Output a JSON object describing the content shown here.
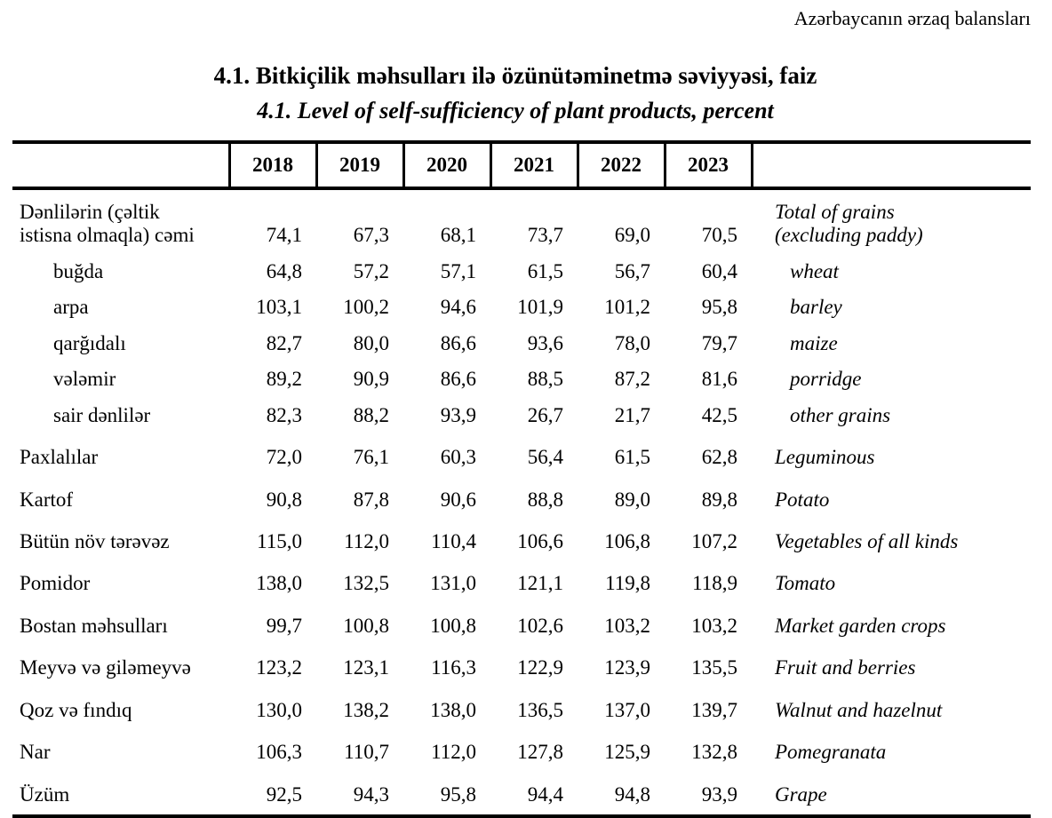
{
  "page": {
    "corner_caption": "Azərbaycanın ərzaq balansları",
    "title_az": "4.1. Bitkiçilik məhsulları ilə özünütəminetmə səviyyəsi, faiz",
    "title_en": "4.1. Level of self-sufficiency of plant products, percent"
  },
  "table": {
    "year_headers": [
      "2018",
      "2019",
      "2020",
      "2021",
      "2022",
      "2023"
    ],
    "rows": [
      {
        "az": "Dənlilərin (çəltik istisna olmaqla) cəmi",
        "az_lines": [
          "Dənlilərin (çəltik",
          "istisna olmaqla) cəmi"
        ],
        "en": "Total of grains (excluding paddy)",
        "en_lines": [
          "Total of grains",
          "(excluding paddy)"
        ],
        "level": "main",
        "values": [
          "74,1",
          "67,3",
          "68,1",
          "73,7",
          "69,0",
          "70,5"
        ]
      },
      {
        "az": "buğda",
        "en": "wheat",
        "level": "sub",
        "values": [
          "64,8",
          "57,2",
          "57,1",
          "61,5",
          "56,7",
          "60,4"
        ]
      },
      {
        "az": "arpa",
        "en": "barley",
        "level": "sub",
        "values": [
          "103,1",
          "100,2",
          "94,6",
          "101,9",
          "101,2",
          "95,8"
        ]
      },
      {
        "az": "qarğıdalı",
        "en": "maize",
        "level": "sub",
        "values": [
          "82,7",
          "80,0",
          "86,6",
          "93,6",
          "78,0",
          "79,7"
        ]
      },
      {
        "az": "vələmir",
        "en": "porridge",
        "level": "sub",
        "values": [
          "89,2",
          "90,9",
          "86,6",
          "88,5",
          "87,2",
          "81,6"
        ]
      },
      {
        "az": "sair dənlilər",
        "en": "other grains",
        "level": "sub",
        "values": [
          "82,3",
          "88,2",
          "93,9",
          "26,7",
          "21,7",
          "42,5"
        ]
      },
      {
        "az": "Paxlalılar",
        "en": "Leguminous",
        "level": "main",
        "values": [
          "72,0",
          "76,1",
          "60,3",
          "56,4",
          "61,5",
          "62,8"
        ]
      },
      {
        "az": "Kartof",
        "en": "Potato",
        "level": "main",
        "values": [
          "90,8",
          "87,8",
          "90,6",
          "88,8",
          "89,0",
          "89,8"
        ]
      },
      {
        "az": "Bütün növ tərəvəz",
        "en": "Vegetables of all kinds",
        "level": "main",
        "values": [
          "115,0",
          "112,0",
          "110,4",
          "106,6",
          "106,8",
          "107,2"
        ]
      },
      {
        "az": "Pomidor",
        "en": "Tomato",
        "level": "main",
        "values": [
          "138,0",
          "132,5",
          "131,0",
          "121,1",
          "119,8",
          "118,9"
        ]
      },
      {
        "az": "Bostan məhsulları",
        "en": "Market garden crops",
        "level": "main",
        "values": [
          "99,7",
          "100,8",
          "100,8",
          "102,6",
          "103,2",
          "103,2"
        ]
      },
      {
        "az": "Meyvə və giləmeyvə",
        "en": "Fruit and berries",
        "level": "main",
        "values": [
          "123,2",
          "123,1",
          "116,3",
          "122,9",
          "123,9",
          "135,5"
        ]
      },
      {
        "az": "Qoz və fındıq",
        "en": "Walnut and hazelnut",
        "level": "main",
        "values": [
          "130,0",
          "138,2",
          "138,0",
          "136,5",
          "137,0",
          "139,7"
        ]
      },
      {
        "az": "Nar",
        "en": "Pomegranata",
        "level": "main",
        "values": [
          "106,3",
          "110,7",
          "112,0",
          "127,8",
          "125,9",
          "132,8"
        ]
      },
      {
        "az": "Üzüm",
        "en": "Grape",
        "level": "main",
        "values": [
          "92,5",
          "94,3",
          "95,8",
          "94,4",
          "94,8",
          "93,9"
        ]
      }
    ]
  }
}
